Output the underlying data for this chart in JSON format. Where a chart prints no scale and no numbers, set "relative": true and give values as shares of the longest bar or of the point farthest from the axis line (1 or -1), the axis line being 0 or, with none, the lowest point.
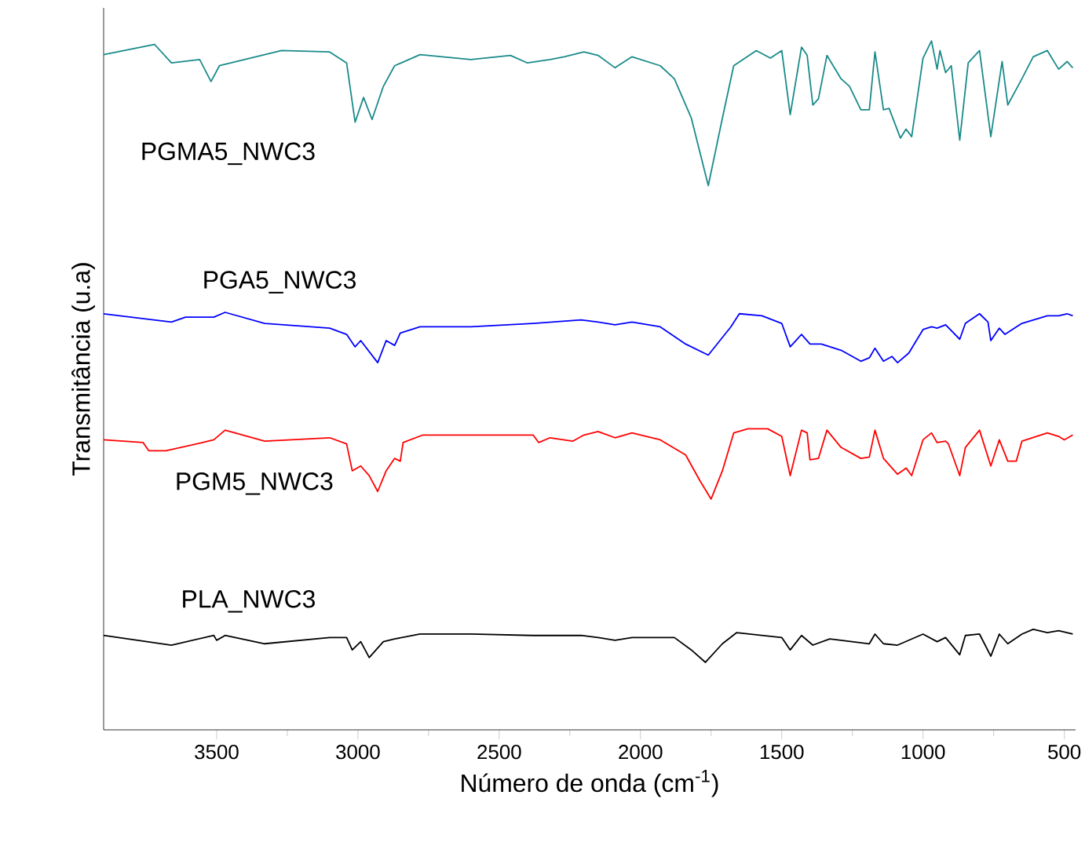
{
  "chart_data": {
    "type": "line",
    "relative": true,
    "xlabel": "Número de onda (cm$^{-1}$)",
    "ylabel": "Transmitância (u.a)",
    "xlim": [
      3900,
      460
    ],
    "xticks": [
      3500,
      3000,
      2500,
      2000,
      1500,
      1000,
      500
    ],
    "marker": "none",
    "line_style": "solid",
    "series": [
      {
        "name": "PGMA5_NWC3",
        "color": "#1a8a8a",
        "x": [
          3900,
          3720,
          3660,
          3560,
          3520,
          3490,
          3270,
          3100,
          3040,
          3010,
          2980,
          2950,
          2910,
          2870,
          2780,
          2600,
          2460,
          2400,
          2320,
          2270,
          2200,
          2150,
          2090,
          2030,
          1930,
          1880,
          1820,
          1760,
          1710,
          1670,
          1590,
          1540,
          1500,
          1470,
          1430,
          1410,
          1390,
          1370,
          1340,
          1290,
          1260,
          1220,
          1190,
          1170,
          1140,
          1120,
          1080,
          1060,
          1040,
          1000,
          970,
          950,
          940,
          920,
          900,
          870,
          840,
          800,
          760,
          720,
          700,
          650,
          610,
          560,
          520,
          490,
          470
        ],
        "values": [
          0.98,
          0.995,
          0.968,
          0.973,
          0.941,
          0.964,
          0.986,
          0.984,
          0.968,
          0.882,
          0.918,
          0.886,
          0.934,
          0.964,
          0.98,
          0.973,
          0.979,
          0.968,
          0.973,
          0.977,
          0.984,
          0.979,
          0.961,
          0.977,
          0.964,
          0.945,
          0.888,
          0.79,
          0.888,
          0.964,
          0.986,
          0.975,
          0.986,
          0.893,
          0.991,
          0.979,
          0.907,
          0.916,
          0.979,
          0.945,
          0.934,
          0.9,
          0.9,
          0.984,
          0.9,
          0.902,
          0.859,
          0.872,
          0.861,
          0.975,
          1.0,
          0.959,
          0.986,
          0.954,
          0.964,
          0.856,
          0.968,
          0.986,
          0.861,
          0.97,
          0.907,
          0.945,
          0.977,
          0.986,
          0.959,
          0.97,
          0.961
        ]
      },
      {
        "name": "PGA5_NWC3",
        "color": "#0000ff",
        "x": [
          3900,
          3660,
          3610,
          3510,
          3470,
          3330,
          3100,
          3040,
          3010,
          2990,
          2930,
          2900,
          2870,
          2850,
          2780,
          2600,
          2380,
          2210,
          2150,
          2090,
          2030,
          1930,
          1840,
          1760,
          1680,
          1650,
          1570,
          1500,
          1470,
          1430,
          1400,
          1360,
          1290,
          1220,
          1190,
          1170,
          1140,
          1110,
          1090,
          1050,
          1000,
          970,
          950,
          920,
          870,
          850,
          800,
          770,
          760,
          730,
          710,
          650,
          560,
          520,
          490,
          470
        ],
        "values": [
          0.604,
          0.592,
          0.599,
          0.599,
          0.606,
          0.59,
          0.583,
          0.574,
          0.556,
          0.565,
          0.533,
          0.565,
          0.558,
          0.576,
          0.585,
          0.585,
          0.59,
          0.595,
          0.592,
          0.588,
          0.592,
          0.585,
          0.56,
          0.544,
          0.585,
          0.604,
          0.601,
          0.59,
          0.556,
          0.574,
          0.56,
          0.56,
          0.551,
          0.535,
          0.54,
          0.554,
          0.535,
          0.542,
          0.533,
          0.547,
          0.581,
          0.585,
          0.583,
          0.588,
          0.567,
          0.59,
          0.604,
          0.592,
          0.565,
          0.583,
          0.574,
          0.59,
          0.601,
          0.601,
          0.604,
          0.601
        ]
      },
      {
        "name": "PGM5_NWC3",
        "color": "#ff0000",
        "x": [
          3900,
          3760,
          3740,
          3680,
          3550,
          3510,
          3470,
          3330,
          3100,
          3040,
          3020,
          2990,
          2960,
          2930,
          2900,
          2870,
          2850,
          2840,
          2770,
          2380,
          2360,
          2320,
          2240,
          2200,
          2150,
          2090,
          2030,
          1930,
          1840,
          1790,
          1750,
          1710,
          1670,
          1620,
          1550,
          1500,
          1470,
          1430,
          1410,
          1400,
          1370,
          1340,
          1290,
          1220,
          1190,
          1170,
          1140,
          1090,
          1060,
          1040,
          1000,
          970,
          950,
          920,
          910,
          870,
          850,
          800,
          760,
          730,
          700,
          670,
          650,
          560,
          520,
          500,
          470
        ],
        "values": [
          0.421,
          0.417,
          0.405,
          0.405,
          0.417,
          0.421,
          0.435,
          0.419,
          0.424,
          0.415,
          0.376,
          0.383,
          0.369,
          0.346,
          0.376,
          0.394,
          0.39,
          0.417,
          0.428,
          0.428,
          0.417,
          0.424,
          0.419,
          0.428,
          0.433,
          0.424,
          0.431,
          0.421,
          0.399,
          0.362,
          0.335,
          0.376,
          0.431,
          0.437,
          0.437,
          0.426,
          0.369,
          0.435,
          0.431,
          0.392,
          0.394,
          0.435,
          0.41,
          0.394,
          0.396,
          0.435,
          0.394,
          0.371,
          0.38,
          0.369,
          0.421,
          0.431,
          0.417,
          0.419,
          0.415,
          0.369,
          0.41,
          0.435,
          0.383,
          0.421,
          0.39,
          0.39,
          0.419,
          0.431,
          0.426,
          0.421,
          0.428
        ]
      },
      {
        "name": "PLA_NWC3",
        "color": "#000000",
        "x": [
          3900,
          3660,
          3510,
          3500,
          3470,
          3330,
          3100,
          3040,
          3020,
          2990,
          2960,
          2910,
          2870,
          2780,
          2600,
          2380,
          2210,
          2150,
          2090,
          2030,
          1880,
          1820,
          1770,
          1710,
          1660,
          1500,
          1470,
          1430,
          1390,
          1330,
          1190,
          1170,
          1140,
          1090,
          1000,
          950,
          920,
          870,
          850,
          800,
          760,
          730,
          700,
          650,
          610,
          560,
          520,
          470
        ],
        "values": [
          0.137,
          0.123,
          0.137,
          0.13,
          0.137,
          0.125,
          0.134,
          0.134,
          0.116,
          0.128,
          0.105,
          0.128,
          0.132,
          0.139,
          0.139,
          0.137,
          0.137,
          0.134,
          0.13,
          0.134,
          0.134,
          0.116,
          0.098,
          0.125,
          0.141,
          0.134,
          0.116,
          0.137,
          0.123,
          0.132,
          0.125,
          0.139,
          0.125,
          0.123,
          0.139,
          0.128,
          0.134,
          0.109,
          0.137,
          0.139,
          0.107,
          0.139,
          0.125,
          0.139,
          0.146,
          0.141,
          0.144,
          0.139
        ]
      }
    ]
  }
}
